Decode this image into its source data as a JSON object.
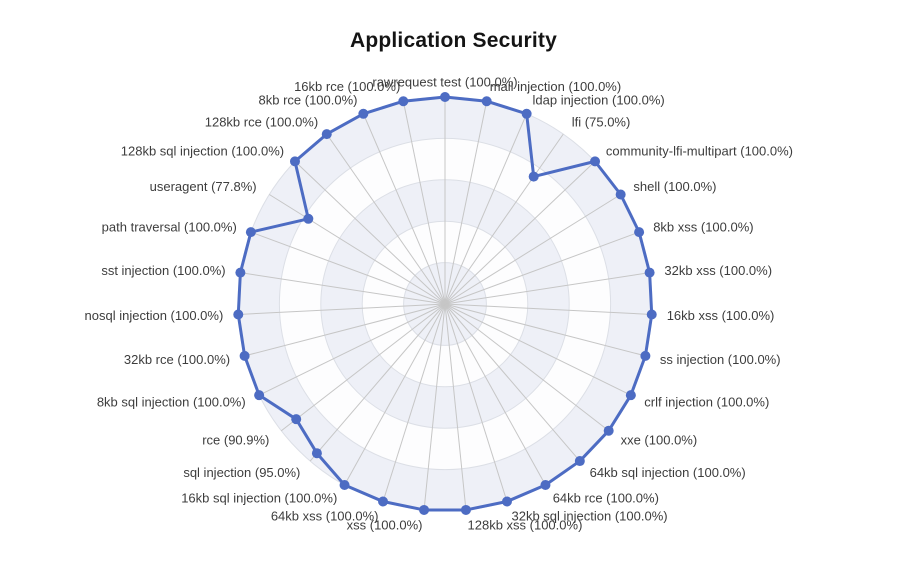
{
  "chart_data": {
    "type": "radar",
    "title": "Application Security",
    "unit": "%",
    "grid": true,
    "legend_position": "none",
    "value_axis": {
      "min": 0,
      "max": 100,
      "rings": 5
    },
    "label_format": "{name} ({value}%)",
    "series": [
      {
        "name": "Application Security",
        "points": [
          {
            "name": "rawrequest test",
            "value": 100.0,
            "label": "rawrequest test (100.0%)"
          },
          {
            "name": "mail injection",
            "value": 100.0,
            "label": "mail injection (100.0%)"
          },
          {
            "name": "ldap injection",
            "value": 100.0,
            "label": "ldap injection (100.0%)"
          },
          {
            "name": "lfi",
            "value": 75.0,
            "label": "lfi (75.0%)"
          },
          {
            "name": "community-lfi-multipart",
            "value": 100.0,
            "label": "community-lfi-multipart (100.0%)"
          },
          {
            "name": "shell",
            "value": 100.0,
            "label": "shell (100.0%)"
          },
          {
            "name": "8kb xss",
            "value": 100.0,
            "label": "8kb xss (100.0%)"
          },
          {
            "name": "32kb xss",
            "value": 100.0,
            "label": "32kb xss (100.0%)"
          },
          {
            "name": "16kb xss",
            "value": 100.0,
            "label": "16kb xss (100.0%)"
          },
          {
            "name": "ss injection",
            "value": 100.0,
            "label": "ss injection (100.0%)"
          },
          {
            "name": "crlf injection",
            "value": 100.0,
            "label": "crlf injection (100.0%)"
          },
          {
            "name": "xxe",
            "value": 100.0,
            "label": "xxe (100.0%)"
          },
          {
            "name": "64kb sql injection",
            "value": 100.0,
            "label": "64kb sql injection (100.0%)"
          },
          {
            "name": "64kb rce",
            "value": 100.0,
            "label": "64kb rce (100.0%)"
          },
          {
            "name": "32kb sql injection",
            "value": 100.0,
            "label": "32kb sql injection (100.0%)"
          },
          {
            "name": "128kb xss",
            "value": 100.0,
            "label": "128kb xss (100.0%)"
          },
          {
            "name": "xss",
            "value": 100.0,
            "label": "xss (100.0%)"
          },
          {
            "name": "64kb xss",
            "value": 100.0,
            "label": "64kb xss (100.0%)"
          },
          {
            "name": "16kb sql injection",
            "value": 100.0,
            "label": "16kb sql injection (100.0%)"
          },
          {
            "name": "sql injection",
            "value": 95.0,
            "label": "sql injection (95.0%)"
          },
          {
            "name": "rce",
            "value": 90.9,
            "label": "rce (90.9%)"
          },
          {
            "name": "8kb sql injection",
            "value": 100.0,
            "label": "8kb sql injection (100.0%)"
          },
          {
            "name": "32kb rce",
            "value": 100.0,
            "label": "32kb rce (100.0%)"
          },
          {
            "name": "nosql injection",
            "value": 100.0,
            "label": "nosql injection (100.0%)"
          },
          {
            "name": "sst injection",
            "value": 100.0,
            "label": "sst injection (100.0%)"
          },
          {
            "name": "path traversal",
            "value": 100.0,
            "label": "path traversal (100.0%)"
          },
          {
            "name": "useragent",
            "value": 77.8,
            "label": "useragent (77.8%)"
          },
          {
            "name": "128kb sql injection",
            "value": 100.0,
            "label": "128kb sql injection (100.0%)"
          },
          {
            "name": "128kb rce",
            "value": 100.0,
            "label": "128kb rce (100.0%)"
          },
          {
            "name": "8kb rce",
            "value": 100.0,
            "label": "8kb rce (100.0%)"
          },
          {
            "name": "16kb rce",
            "value": 100.0,
            "label": "16kb rce (100.0%)"
          }
        ]
      }
    ]
  },
  "style": {
    "series_line": "#4d6cc3",
    "series_point": "#4d6cc3",
    "axis_label_color": "#3d3d3d",
    "title_color": "#141414",
    "spoke_color": "#c6c6c6",
    "ring_border": "#dcdfe6",
    "ring_fill_odd": "#eef0f7",
    "ring_fill_even": "#fdfdfe",
    "background": "#ffffff"
  }
}
